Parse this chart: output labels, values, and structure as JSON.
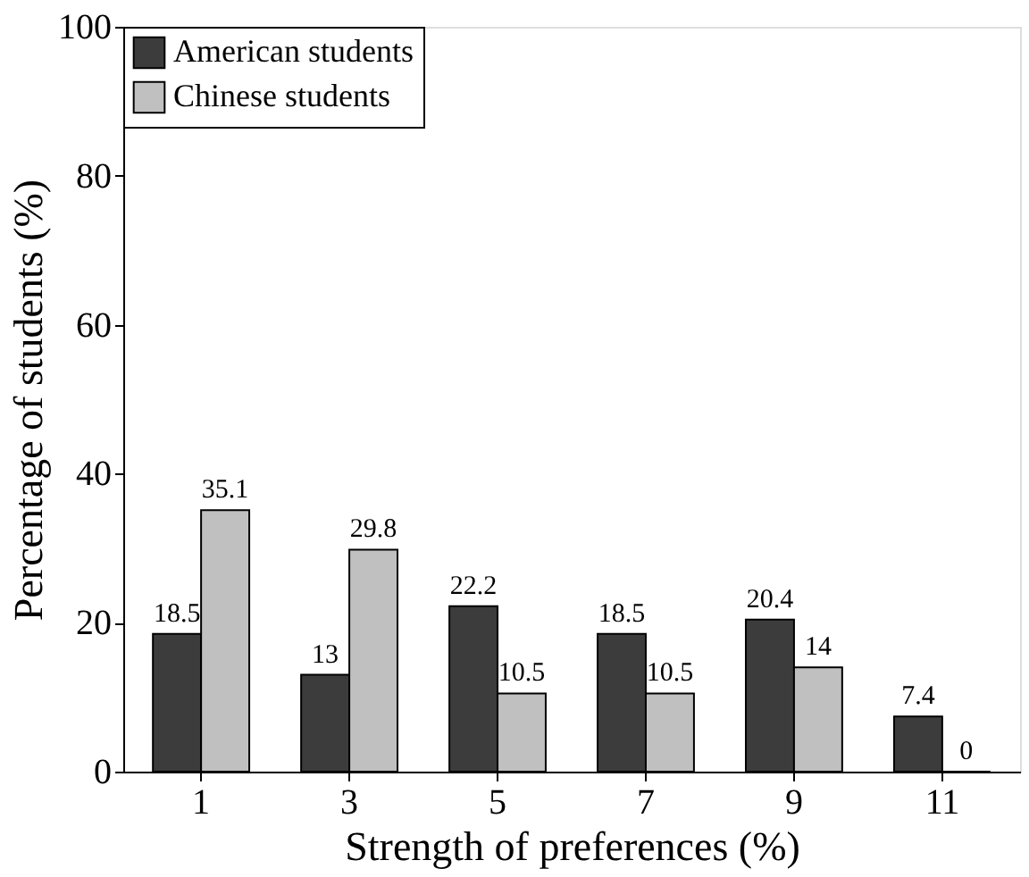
{
  "chart_data": {
    "type": "bar",
    "xlabel": "Strength of preferences (%)",
    "ylabel": "Percentage of students (%)",
    "categories": [
      "1",
      "3",
      "5",
      "7",
      "9",
      "11"
    ],
    "series": [
      {
        "name": "American students",
        "color": "#3c3c3c",
        "values": [
          18.5,
          13,
          22.2,
          18.5,
          20.4,
          7.4
        ]
      },
      {
        "name": "Chinese students",
        "color": "#c0c0c0",
        "values": [
          35.1,
          29.8,
          10.5,
          10.5,
          14,
          0
        ]
      }
    ],
    "ylim": [
      0,
      100
    ],
    "yticks": [
      0,
      20,
      40,
      60,
      80,
      100
    ],
    "grid": false,
    "legend": "top left",
    "data_labels": true
  }
}
